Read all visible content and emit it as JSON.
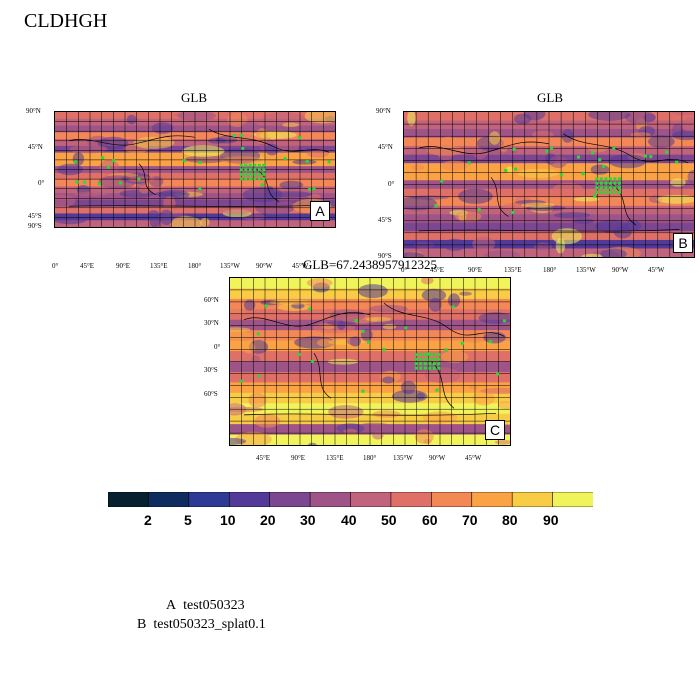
{
  "main_title": "CLDHGH",
  "panels": [
    {
      "id": "A",
      "title": "GLB",
      "badge": "A",
      "lat_ticks": [
        "90°N",
        "45°N",
        "0°",
        "45°S",
        "90°S"
      ],
      "lon_ticks": [
        "0°",
        "45°E",
        "90°E",
        "135°E",
        "180°",
        "135°W",
        "90°W",
        "45°W"
      ]
    },
    {
      "id": "B",
      "title": "GLB",
      "badge": "B",
      "lat_ticks": [
        "90°N",
        "45°N",
        "0°",
        "45°S",
        "90°S"
      ],
      "lon_ticks": [
        "0°",
        "45°E",
        "90°E",
        "135°E",
        "180°",
        "135°W",
        "90°W",
        "45°W"
      ]
    },
    {
      "id": "C",
      "title": "GLB=67.2438957912325",
      "badge": "C",
      "lat_ticks": [
        "60°N",
        "30°N",
        "0°",
        "30°S",
        "60°S"
      ],
      "lon_ticks": [
        "45°E",
        "90°E",
        "135°E",
        "180°",
        "135°W",
        "90°W",
        "45°W"
      ]
    }
  ],
  "colorbar": {
    "labels": [
      "2",
      "5",
      "10",
      "20",
      "30",
      "40",
      "50",
      "60",
      "70",
      "80",
      "90"
    ],
    "colors": [
      "#07202f",
      "#0e2c5e",
      "#2d3b96",
      "#543a98",
      "#7c4690",
      "#9f5487",
      "#c1637c",
      "#de7068",
      "#f38856",
      "#fba245",
      "#f9cc45",
      "#f0f45a"
    ]
  },
  "legend": [
    {
      "key": "A",
      "text": "test050323"
    },
    {
      "key": "B",
      "text": "test050323_splat0.1"
    }
  ]
}
